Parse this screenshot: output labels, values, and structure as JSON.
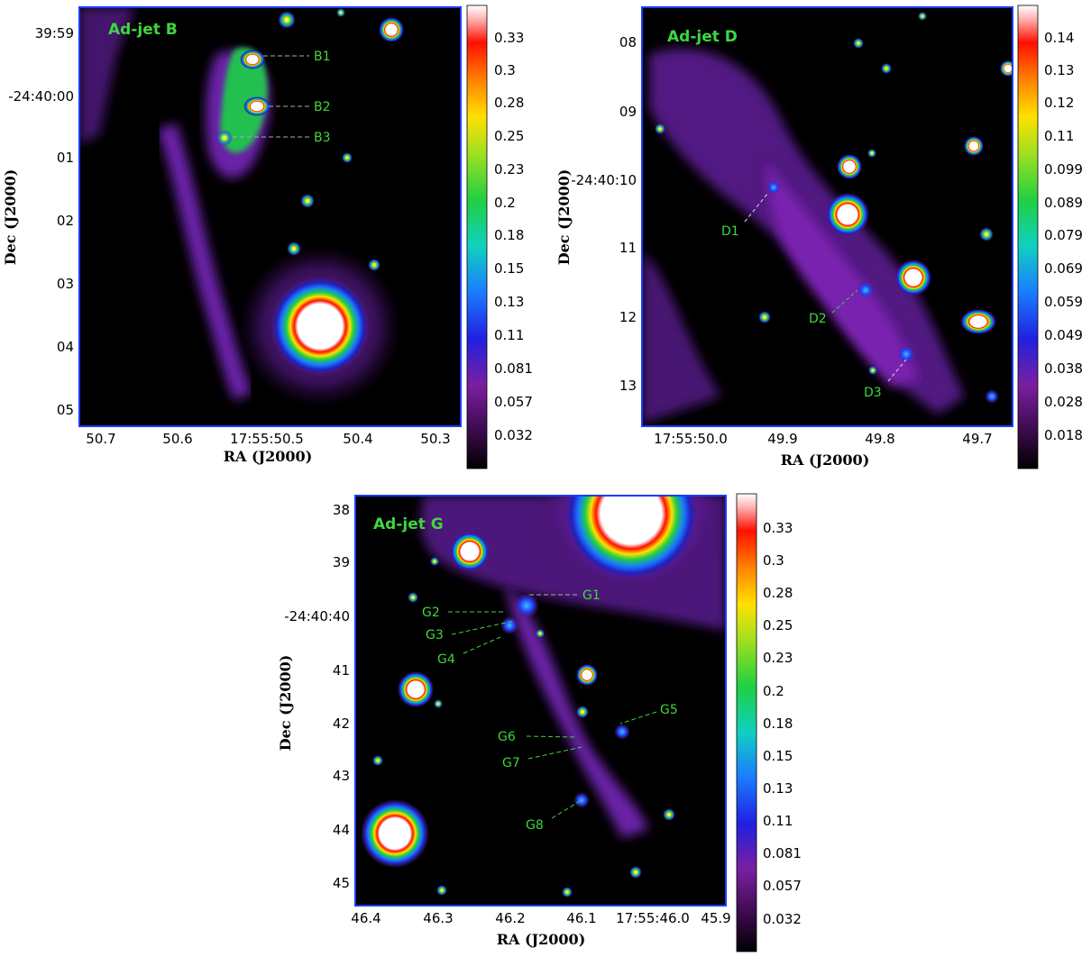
{
  "panels": [
    {
      "id": "B",
      "title": "Ad-jet B",
      "x_label": "RA (J2000)",
      "y_label": "Dec (J2000)",
      "x_ticks": [
        "50.7",
        "50.6",
        "17:55:50.5",
        "50.4",
        "50.3"
      ],
      "y_ticks": [
        "39:59",
        "-24:40:00",
        "01",
        "02",
        "03",
        "04",
        "05"
      ],
      "colorbar_ticks": [
        "0.33",
        "0.3",
        "0.28",
        "0.25",
        "0.23",
        "0.2",
        "0.18",
        "0.15",
        "0.13",
        "0.11",
        "0.081",
        "0.057",
        "0.032"
      ],
      "annotations": [
        {
          "label": "B1"
        },
        {
          "label": "B2"
        },
        {
          "label": "B3"
        }
      ]
    },
    {
      "id": "D",
      "title": "Ad-jet D",
      "x_label": "RA (J2000)",
      "y_label": "Dec (J2000)",
      "x_ticks": [
        "17:55:50.0",
        "49.9",
        "49.8",
        "49.7"
      ],
      "y_ticks": [
        "08",
        "09",
        "-24:40:10",
        "11",
        "12",
        "13"
      ],
      "colorbar_ticks": [
        "0.14",
        "0.13",
        "0.12",
        "0.11",
        "0.099",
        "0.089",
        "0.079",
        "0.069",
        "0.059",
        "0.049",
        "0.038",
        "0.028",
        "0.018"
      ],
      "annotations": [
        {
          "label": "D1"
        },
        {
          "label": "D2"
        },
        {
          "label": "D3"
        }
      ]
    },
    {
      "id": "G",
      "title": "Ad-jet G",
      "x_label": "RA (J2000)",
      "y_label": "Dec (J2000)",
      "x_ticks": [
        "46.4",
        "46.3",
        "46.2",
        "46.1",
        "17:55:46.0",
        "45.9"
      ],
      "y_ticks": [
        "38",
        "39",
        "-24:40:40",
        "41",
        "42",
        "43",
        "44",
        "45"
      ],
      "colorbar_ticks": [
        "0.33",
        "0.3",
        "0.28",
        "0.25",
        "0.23",
        "0.2",
        "0.18",
        "0.15",
        "0.13",
        "0.11",
        "0.081",
        "0.057",
        "0.032"
      ],
      "annotations": [
        {
          "label": "G1"
        },
        {
          "label": "G2"
        },
        {
          "label": "G3"
        },
        {
          "label": "G4"
        },
        {
          "label": "G5"
        },
        {
          "label": "G6"
        },
        {
          "label": "G7"
        },
        {
          "label": "G8"
        }
      ]
    }
  ],
  "colors": {
    "panel_background": "#000000",
    "frame": "#1a3cff",
    "annotation": "#3fd63f"
  }
}
